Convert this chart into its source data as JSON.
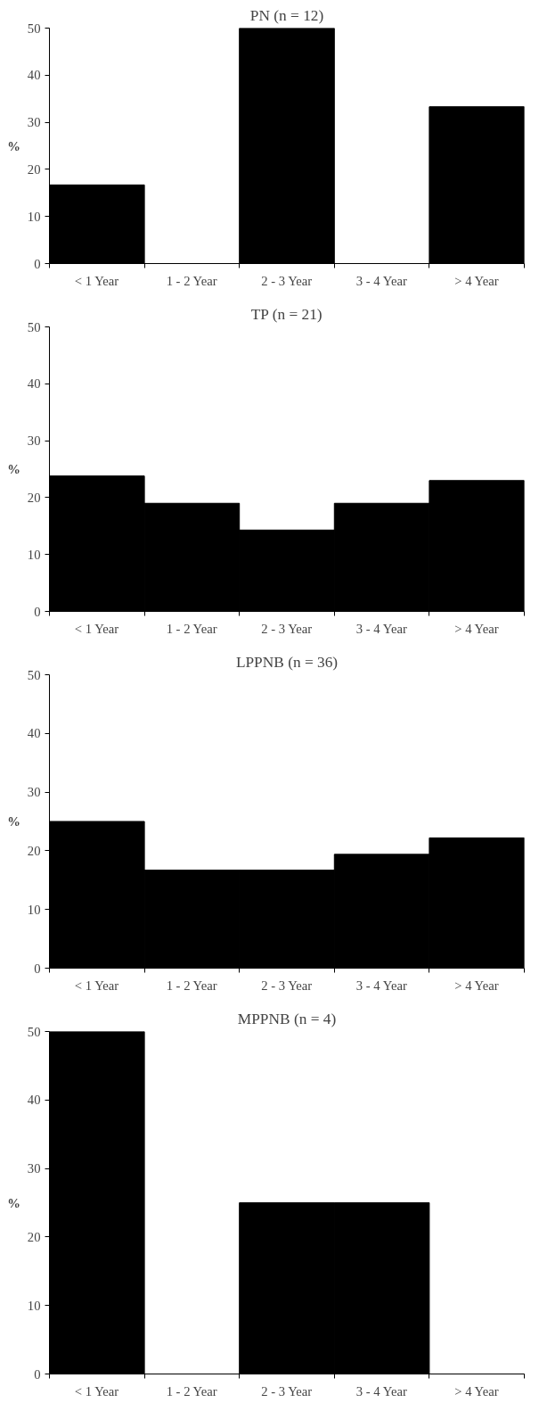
{
  "chart_data": [
    {
      "type": "bar",
      "title": "PN (n = 12)",
      "ylabel": "%",
      "categories": [
        "< 1 Year",
        "1 - 2 Year",
        "2 - 3 Year",
        "3 - 4 Year",
        "> 4 Year"
      ],
      "values": [
        16.7,
        0,
        50,
        0,
        33.3
      ],
      "color": "#000000",
      "ylim": [
        0,
        50
      ],
      "yticks": [
        0,
        10,
        20,
        30,
        40,
        50
      ],
      "grid": false,
      "legend": false
    },
    {
      "type": "bar",
      "title": "TP (n = 21)",
      "ylabel": "%",
      "categories": [
        "< 1 Year",
        "1 - 2 Year",
        "2 - 3 Year",
        "3 - 4 Year",
        "> 4 Year"
      ],
      "values": [
        23.8,
        19.0,
        14.3,
        19.0,
        23.0
      ],
      "color": "#000000",
      "ylim": [
        0,
        50
      ],
      "yticks": [
        0,
        10,
        20,
        30,
        40,
        50
      ],
      "grid": false,
      "legend": false
    },
    {
      "type": "bar",
      "title": "LPPNB (n = 36)",
      "ylabel": "%",
      "categories": [
        "< 1 Year",
        "1 - 2 Year",
        "2 - 3 Year",
        "3 - 4 Year",
        "> 4 Year"
      ],
      "values": [
        25.0,
        16.7,
        16.7,
        19.4,
        22.2
      ],
      "color": "#000000",
      "ylim": [
        0,
        50
      ],
      "yticks": [
        0,
        10,
        20,
        30,
        40,
        50
      ],
      "grid": false,
      "legend": false
    },
    {
      "type": "bar",
      "title": "MPPNB (n = 4)",
      "ylabel": "%",
      "categories": [
        "< 1 Year",
        "1 - 2 Year",
        "2 - 3 Year",
        "3 - 4 Year",
        "> 4 Year"
      ],
      "values": [
        50,
        0,
        25,
        25,
        0
      ],
      "color": "#000000",
      "ylim": [
        0,
        50
      ],
      "yticks": [
        0,
        10,
        20,
        30,
        40,
        50
      ],
      "grid": false,
      "legend": false
    }
  ]
}
